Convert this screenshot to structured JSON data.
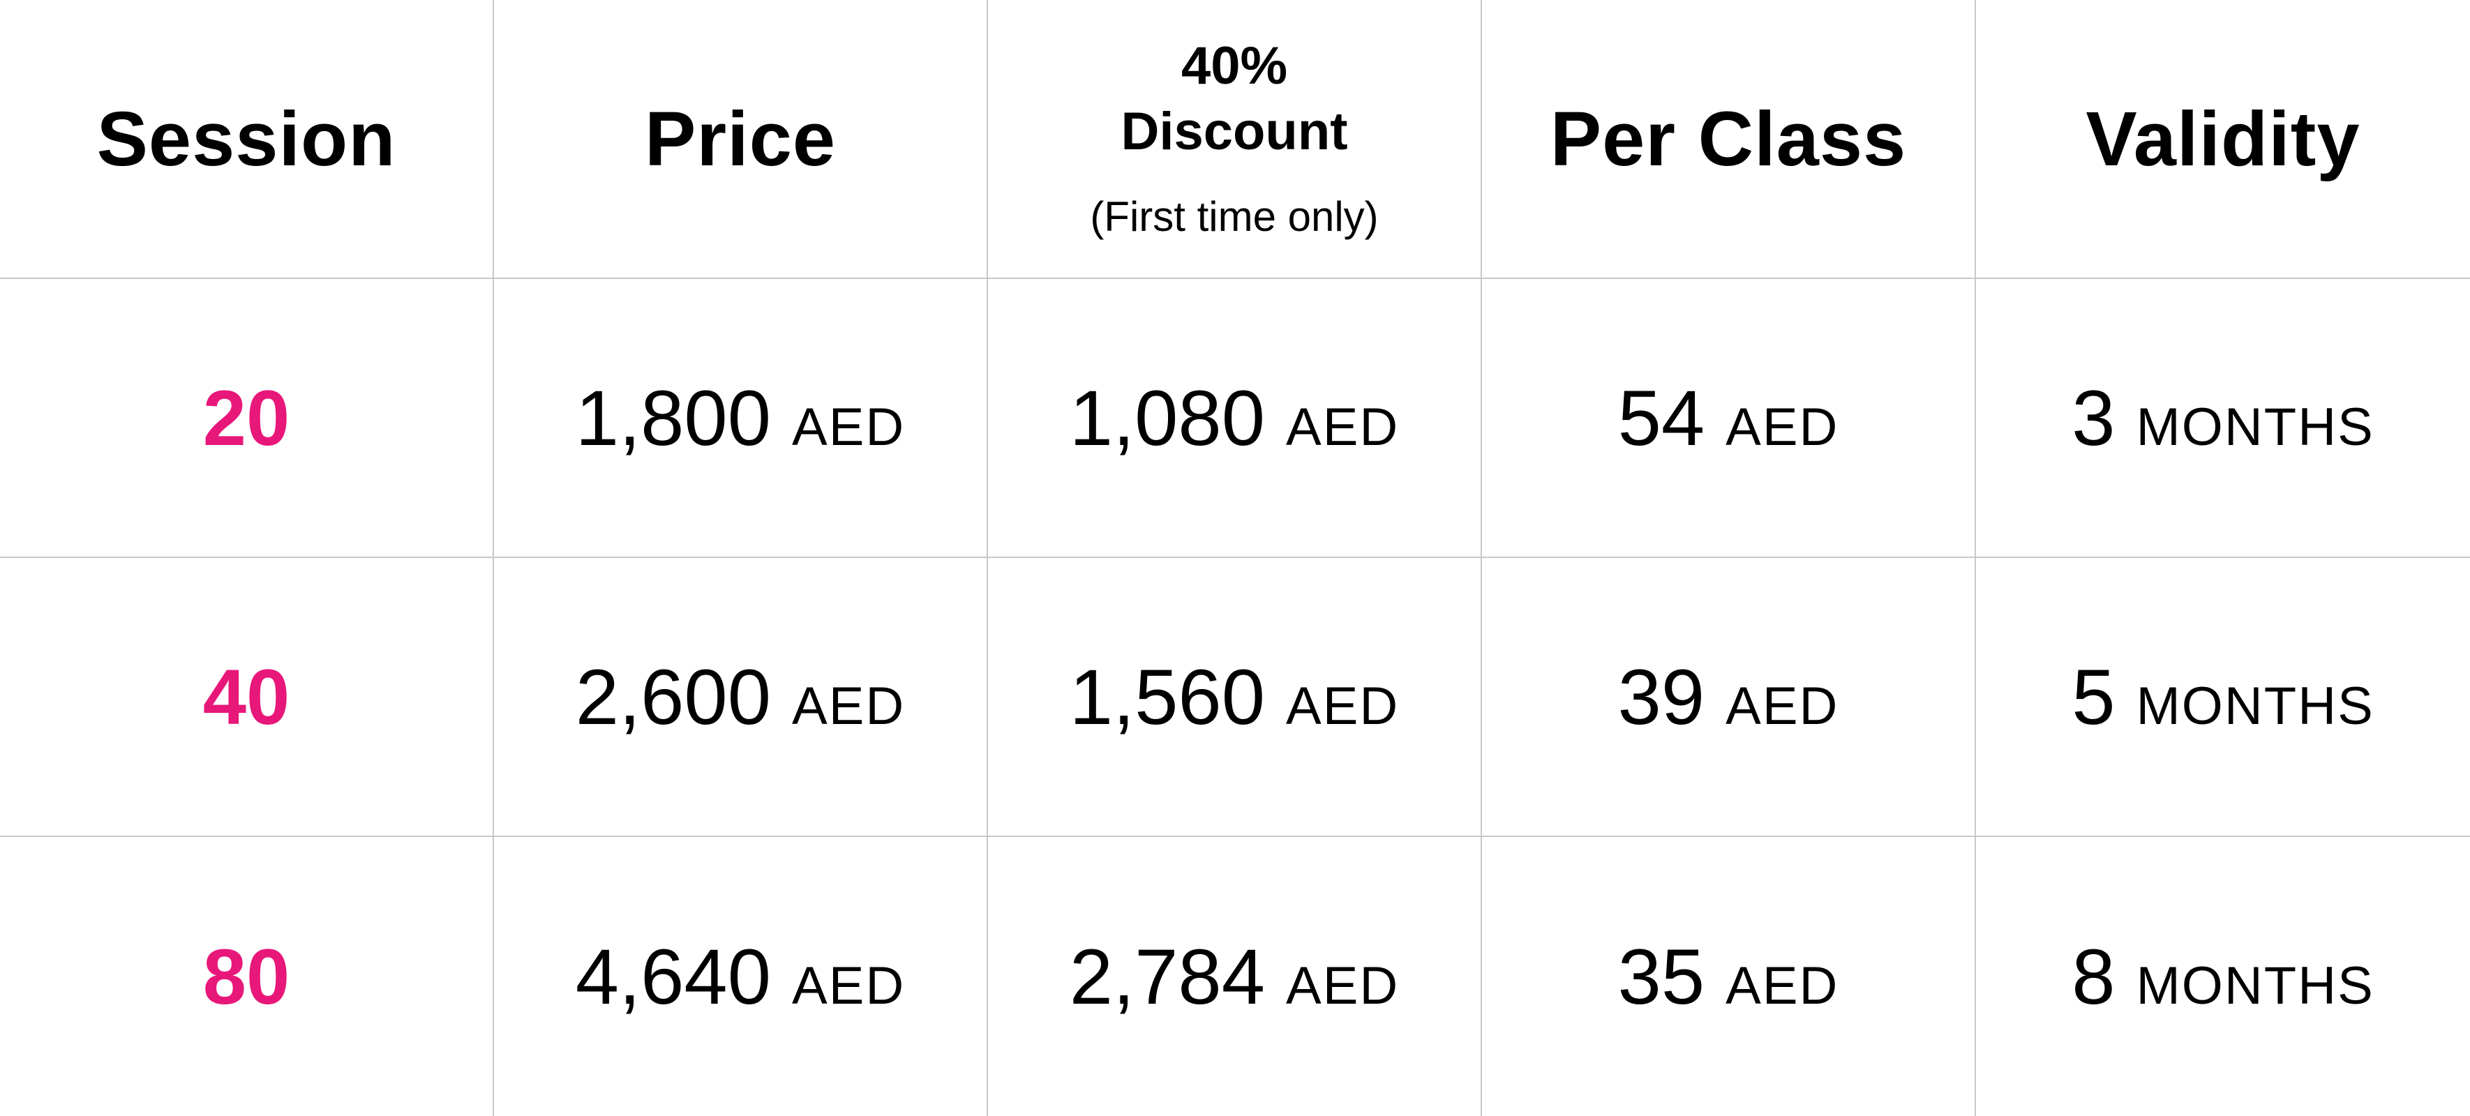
{
  "header": {
    "session": "Session",
    "price": "Price",
    "discount_line1": "40%",
    "discount_line2": "Discount",
    "discount_note": "(First time only)",
    "per_class": "Per Class",
    "validity": "Validity"
  },
  "colors": {
    "session_accent": "#e8177a",
    "grid_line": "#c8c8c8"
  },
  "rows": [
    {
      "session": "20",
      "price": "1,800",
      "price_unit": "AED",
      "discount": "1,080",
      "discount_unit": "AED",
      "per_class": "54",
      "per_class_unit": "AED",
      "validity": "3",
      "validity_unit": "MONTHS"
    },
    {
      "session": "40",
      "price": "2,600",
      "price_unit": "AED",
      "discount": "1,560",
      "discount_unit": "AED",
      "per_class": "39",
      "per_class_unit": "AED",
      "validity": "5",
      "validity_unit": "MONTHS"
    },
    {
      "session": "80",
      "price": "4,640",
      "price_unit": "AED",
      "discount": "2,784",
      "discount_unit": "AED",
      "per_class": "35",
      "per_class_unit": "AED",
      "validity": "8",
      "validity_unit": "MONTHS"
    }
  ]
}
